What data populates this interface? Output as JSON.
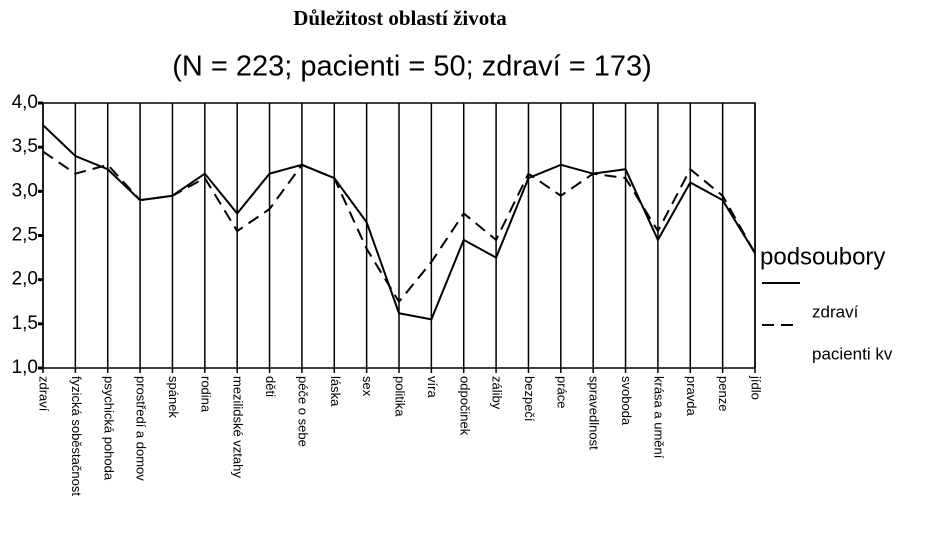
{
  "chart_data": {
    "type": "line",
    "title": "Důležitost oblastí života",
    "subtitle": "(N = 223; pacienti = 50; zdraví = 173)",
    "legend_title": "podsoubory",
    "categories": [
      "zdraví",
      "fyzická soběstačnost",
      "psychická pohoda",
      "prostředí a domov",
      "spánek",
      "rodina",
      "mezilidské vztahy",
      "děti",
      "péče o sebe",
      "láska",
      "sex",
      "politika",
      "víra",
      "odpočinek",
      "záliby",
      "bezpečí",
      "práce",
      "spravedlnost",
      "svoboda",
      "krása a umění",
      "pravda",
      "penze",
      "jídlo"
    ],
    "series": [
      {
        "name": "zdraví",
        "color": "#000000",
        "line_style": "solid",
        "values": [
          3.75,
          3.4,
          3.25,
          2.9,
          2.95,
          3.2,
          2.75,
          3.2,
          3.3,
          3.15,
          2.65,
          1.62,
          1.55,
          2.45,
          2.25,
          3.15,
          3.3,
          3.2,
          3.25,
          2.45,
          3.1,
          2.9,
          2.3
        ]
      },
      {
        "name": "pacienti kv",
        "color": "#000000",
        "line_style": "dashed",
        "values": [
          3.45,
          3.2,
          3.3,
          2.9,
          2.95,
          3.15,
          2.55,
          2.8,
          3.3,
          3.15,
          2.35,
          1.75,
          2.2,
          2.75,
          2.45,
          3.2,
          2.95,
          3.2,
          3.15,
          2.55,
          3.25,
          2.95,
          2.3
        ]
      }
    ],
    "ylim": [
      1.0,
      4.0
    ],
    "yticks": [
      {
        "value": 1.0,
        "label": "1,0"
      },
      {
        "value": 1.5,
        "label": "1,5"
      },
      {
        "value": 2.0,
        "label": "2,0"
      },
      {
        "value": 2.5,
        "label": "2,5"
      },
      {
        "value": 3.0,
        "label": "3,0"
      },
      {
        "value": 3.5,
        "label": "3,5"
      },
      {
        "value": 4.0,
        "label": "4,0"
      }
    ],
    "category_grid": true
  }
}
